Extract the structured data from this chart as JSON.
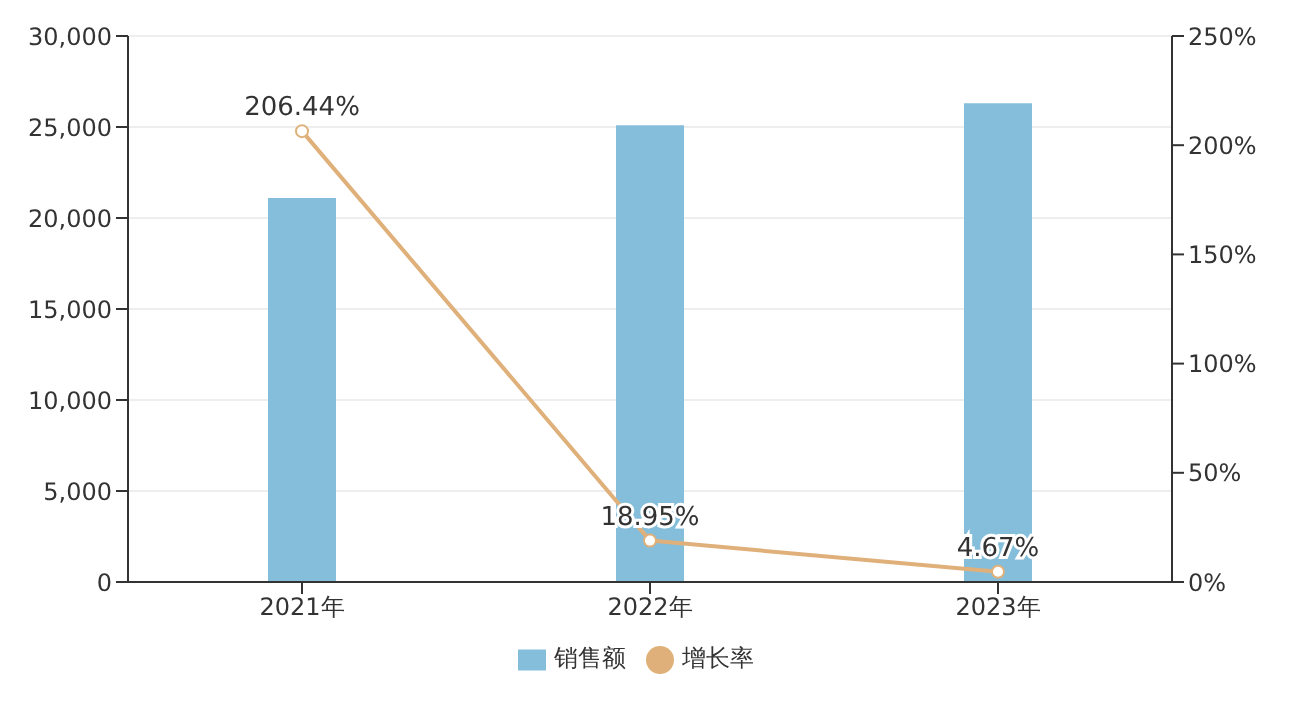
{
  "chart_data": {
    "type": "bar",
    "categories": [
      "2021年",
      "2022年",
      "2023年"
    ],
    "series": [
      {
        "name": "销售额",
        "color": "#85bedb",
        "values": [
          21100,
          25100,
          26300
        ]
      },
      {
        "name": "增长率",
        "type": "line",
        "axis": "y2",
        "color": "#e0b07a",
        "values": [
          206.44,
          18.95,
          4.67
        ],
        "value_labels": [
          "206.44%",
          "18.95%",
          "4.67%"
        ],
        "marker": "circle"
      }
    ],
    "ylim": [
      0,
      30000
    ],
    "yticks": [
      {
        "value": 0,
        "label": "0"
      },
      {
        "value": 5000,
        "label": "5,000"
      },
      {
        "value": 10000,
        "label": "10,000"
      },
      {
        "value": 15000,
        "label": "15,000"
      },
      {
        "value": 20000,
        "label": "20,000"
      },
      {
        "value": 25000,
        "label": "25,000"
      },
      {
        "value": 30000,
        "label": "30,000"
      }
    ],
    "y2lim": [
      0,
      250
    ],
    "y2ticks": [
      {
        "value": 0,
        "label": "0%"
      },
      {
        "value": 50,
        "label": "50%"
      },
      {
        "value": 100,
        "label": "100%"
      },
      {
        "value": 150,
        "label": "150%"
      },
      {
        "value": 200,
        "label": "200%"
      },
      {
        "value": 250,
        "label": "250%"
      }
    ],
    "grid": "y",
    "legend": "bottom"
  }
}
